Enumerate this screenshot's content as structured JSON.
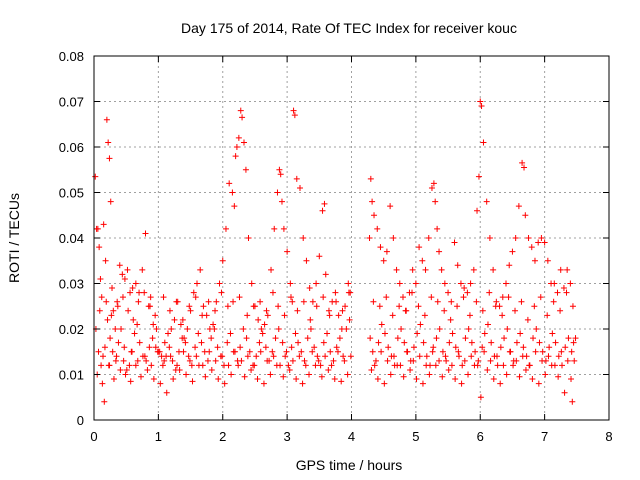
{
  "chart_data": {
    "type": "scatter",
    "title": "Day 175 of 2014, Rate Of TEC Index for receiver kouc",
    "xlabel": "GPS time / hours",
    "ylabel": "ROTI / TECUs",
    "xlim": [
      0,
      8
    ],
    "ylim": [
      0,
      0.08
    ],
    "x_ticks": [
      0,
      1,
      2,
      3,
      4,
      5,
      6,
      7,
      8
    ],
    "x_tick_labels": [
      "0",
      "1",
      "2",
      "3",
      "4",
      "5",
      "6",
      "7",
      "8"
    ],
    "y_ticks": [
      0,
      0.01,
      0.02,
      0.03,
      0.04,
      0.05,
      0.06,
      0.07,
      0.08
    ],
    "y_tick_labels": [
      "0",
      "0.01",
      "0.02",
      "0.03",
      "0.04",
      "0.05",
      "0.06",
      "0.07",
      "0.08"
    ],
    "grid": true,
    "marker": "+",
    "series": [
      {
        "name": "ROTI",
        "color": "#ff0000",
        "x": [
          0.02,
          0.04,
          0.06,
          0.08,
          0.1,
          0.12,
          0.15,
          0.18,
          0.2,
          0.22,
          0.24,
          0.26,
          0.28,
          0.3,
          0.33,
          0.36,
          0.4,
          0.44,
          0.48,
          0.52,
          0.56,
          0.6,
          0.65,
          0.7,
          0.75,
          0.8,
          0.85,
          0.88,
          0.92,
          0.96,
          1.0,
          1.05,
          1.1,
          1.15,
          1.2,
          1.25,
          1.3,
          1.35,
          1.4,
          1.45,
          1.5,
          1.55,
          1.6,
          1.65,
          1.7,
          1.75,
          1.8,
          1.85,
          1.9,
          1.95,
          2.0,
          2.05,
          2.1,
          2.15,
          2.18,
          2.2,
          2.22,
          2.25,
          2.28,
          2.3,
          2.33,
          2.36,
          2.4,
          2.45,
          2.5,
          2.55,
          2.6,
          2.65,
          2.7,
          2.75,
          2.8,
          2.85,
          2.88,
          2.9,
          2.92,
          2.95,
          3.0,
          3.05,
          3.08,
          3.1,
          3.12,
          3.15,
          3.2,
          3.25,
          3.3,
          3.35,
          3.4,
          3.45,
          3.5,
          3.55,
          3.58,
          3.6,
          3.65,
          3.7,
          3.75,
          3.8,
          3.85,
          3.9,
          3.95,
          3.98,
          4.28,
          4.3,
          4.32,
          4.35,
          4.4,
          4.45,
          4.5,
          4.55,
          4.6,
          4.65,
          4.7,
          4.75,
          4.8,
          4.85,
          4.9,
          4.95,
          5.0,
          5.05,
          5.1,
          5.15,
          5.2,
          5.25,
          5.28,
          5.3,
          5.33,
          5.36,
          5.4,
          5.45,
          5.5,
          5.55,
          5.6,
          5.65,
          5.7,
          5.75,
          5.8,
          5.85,
          5.9,
          5.95,
          5.98,
          6.0,
          6.02,
          6.05,
          6.1,
          6.15,
          6.2,
          6.25,
          6.3,
          6.35,
          6.4,
          6.45,
          6.5,
          6.55,
          6.6,
          6.65,
          6.68,
          6.7,
          6.75,
          6.8,
          6.85,
          6.9,
          6.95,
          7.0,
          7.05,
          7.1,
          7.15,
          7.2,
          7.25,
          7.3,
          7.35,
          7.4,
          7.45,
          7.48,
          0.03,
          0.07,
          0.11,
          0.14,
          0.17,
          0.21,
          0.25,
          0.29,
          0.34,
          0.38,
          0.42,
          0.47,
          0.51,
          0.55,
          0.59,
          0.63,
          0.67,
          0.71,
          0.76,
          0.81,
          0.86,
          0.91,
          0.97,
          1.02,
          1.07,
          1.12,
          1.17,
          1.22,
          1.27,
          1.32,
          1.37,
          1.42,
          1.47,
          1.52,
          1.57,
          1.62,
          1.67,
          1.72,
          1.77,
          1.82,
          1.87,
          1.92,
          1.97,
          2.02,
          2.07,
          2.12,
          2.17,
          2.23,
          2.27,
          2.32,
          2.37,
          2.42,
          2.47,
          2.52,
          2.57,
          2.62,
          2.67,
          2.72,
          2.77,
          2.82,
          2.87,
          2.93,
          2.97,
          3.02,
          3.07,
          3.13,
          3.17,
          3.22,
          3.27,
          3.32,
          3.37,
          3.42,
          3.47,
          3.52,
          3.57,
          3.62,
          3.67,
          3.72,
          3.77,
          3.82,
          3.87,
          3.92,
          3.97,
          4.29,
          4.33,
          4.38,
          4.42,
          4.47,
          4.52,
          4.57,
          4.62,
          4.67,
          4.72,
          4.77,
          4.82,
          4.87,
          4.92,
          4.97,
          5.02,
          5.07,
          5.12,
          5.17,
          5.22,
          5.27,
          5.32,
          5.37,
          5.42,
          5.47,
          5.52,
          5.57,
          5.62,
          5.67,
          5.72,
          5.77,
          5.82,
          5.87,
          5.92,
          5.97,
          6.03,
          6.07,
          6.12,
          6.17,
          6.22,
          6.27,
          6.32,
          6.37,
          6.42,
          6.47,
          6.52,
          6.57,
          6.62,
          6.67,
          6.72,
          6.77,
          6.82,
          6.87,
          6.92,
          6.97,
          7.02,
          7.07,
          7.12,
          7.17,
          7.22,
          7.27,
          7.32,
          7.37,
          7.42,
          7.46,
          0.05,
          0.13,
          0.23,
          0.31,
          0.41,
          0.49,
          0.57,
          0.65,
          0.73,
          0.83,
          0.93,
          1.03,
          1.13,
          1.23,
          1.33,
          1.43,
          1.53,
          1.63,
          1.73,
          1.83,
          1.93,
          2.03,
          2.13,
          2.24,
          2.34,
          2.44,
          2.54,
          2.64,
          2.74,
          2.84,
          2.94,
          3.04,
          3.14,
          3.24,
          3.34,
          3.44,
          3.54,
          3.64,
          3.74,
          3.84,
          3.94,
          4.31,
          4.41,
          4.51,
          4.61,
          4.71,
          4.81,
          4.91,
          5.01,
          5.11,
          5.21,
          5.31,
          5.41,
          5.51,
          5.61,
          5.71,
          5.81,
          5.91,
          6.01,
          6.11,
          6.21,
          6.31,
          6.41,
          6.51,
          6.61,
          6.71,
          6.81,
          6.91,
          7.01,
          7.11,
          7.21,
          7.31,
          7.41,
          0.09,
          0.19,
          0.27,
          0.37,
          0.45,
          0.53,
          0.61,
          0.69,
          0.78,
          0.87,
          0.95,
          1.08,
          1.18,
          1.28,
          1.38,
          1.48,
          1.58,
          1.68,
          1.78,
          1.88,
          1.98,
          2.08,
          2.16,
          2.26,
          2.38,
          2.48,
          2.58,
          2.68,
          2.78,
          2.86,
          2.96,
          3.06,
          3.16,
          3.26,
          3.36,
          3.46,
          3.56,
          3.66,
          3.76,
          3.86,
          3.96,
          4.34,
          4.44,
          4.54,
          4.64,
          4.74,
          4.84,
          4.94,
          5.04,
          5.14,
          5.24,
          5.34,
          5.44,
          5.54,
          5.64,
          5.74,
          5.84,
          5.94,
          6.04,
          6.14,
          6.24,
          6.34,
          6.44,
          6.54,
          6.64,
          6.74,
          6.84,
          6.94,
          7.04,
          7.14,
          7.24,
          7.34,
          7.44,
          0.16,
          0.24,
          0.35,
          0.46,
          0.58,
          0.68,
          0.79,
          0.89,
          0.99,
          1.09,
          1.19,
          1.29,
          1.39,
          1.49,
          1.59,
          1.69,
          1.79,
          1.89,
          1.99,
          2.09,
          2.19,
          2.29,
          2.39,
          2.49,
          2.59,
          2.69,
          2.79,
          2.89,
          2.99,
          3.09,
          3.19,
          3.29,
          3.39,
          3.49,
          3.59,
          3.69,
          3.79,
          3.89,
          3.99,
          4.36,
          4.46,
          4.56,
          4.66,
          4.76,
          4.86,
          4.96,
          5.06,
          5.16,
          5.26,
          5.36,
          5.46,
          5.56,
          5.66,
          5.76,
          5.86,
          5.96,
          6.06,
          6.16,
          6.26,
          6.36,
          6.46,
          6.56,
          6.66,
          6.76,
          6.86,
          6.96,
          7.06,
          7.16,
          7.26,
          7.36,
          7.43
        ],
        "y": [
          0.0535,
          0.042,
          0.042,
          0.038,
          0.031,
          0.027,
          0.043,
          0.035,
          0.066,
          0.061,
          0.0575,
          0.048,
          0.029,
          0.024,
          0.02,
          0.026,
          0.034,
          0.032,
          0.031,
          0.033,
          0.028,
          0.029,
          0.03,
          0.028,
          0.033,
          0.041,
          0.025,
          0.027,
          0.021,
          0.016,
          0.015,
          0.014,
          0.017,
          0.019,
          0.02,
          0.022,
          0.026,
          0.021,
          0.018,
          0.02,
          0.024,
          0.028,
          0.03,
          0.033,
          0.025,
          0.023,
          0.02,
          0.021,
          0.026,
          0.03,
          0.035,
          0.042,
          0.052,
          0.05,
          0.047,
          0.058,
          0.06,
          0.062,
          0.068,
          0.0665,
          0.061,
          0.055,
          0.04,
          0.03,
          0.025,
          0.022,
          0.02,
          0.021,
          0.023,
          0.033,
          0.042,
          0.05,
          0.055,
          0.054,
          0.048,
          0.042,
          0.037,
          0.03,
          0.026,
          0.068,
          0.067,
          0.053,
          0.051,
          0.04,
          0.035,
          0.029,
          0.026,
          0.03,
          0.036,
          0.046,
          0.0475,
          0.032,
          0.024,
          0.026,
          0.028,
          0.023,
          0.02,
          0.025,
          0.03,
          0.028,
          0.04,
          0.053,
          0.048,
          0.045,
          0.042,
          0.038,
          0.035,
          0.037,
          0.047,
          0.04,
          0.033,
          0.03,
          0.027,
          0.024,
          0.028,
          0.033,
          0.03,
          0.038,
          0.035,
          0.033,
          0.04,
          0.051,
          0.052,
          0.048,
          0.042,
          0.037,
          0.033,
          0.03,
          0.028,
          0.026,
          0.039,
          0.034,
          0.03,
          0.029,
          0.028,
          0.03,
          0.033,
          0.046,
          0.0535,
          0.07,
          0.069,
          0.061,
          0.048,
          0.04,
          0.033,
          0.026,
          0.025,
          0.027,
          0.03,
          0.034,
          0.037,
          0.04,
          0.047,
          0.0565,
          0.0555,
          0.045,
          0.04,
          0.038,
          0.035,
          0.039,
          0.04,
          0.039,
          0.035,
          0.03,
          0.03,
          0.028,
          0.033,
          0.029,
          0.033,
          0.03,
          0.017,
          0.018,
          0.02,
          0.015,
          0.012,
          0.014,
          0.016,
          0.022,
          0.018,
          0.015,
          0.013,
          0.017,
          0.02,
          0.016,
          0.011,
          0.012,
          0.015,
          0.019,
          0.021,
          0.017,
          0.014,
          0.013,
          0.016,
          0.018,
          0.02,
          0.015,
          0.012,
          0.014,
          0.016,
          0.013,
          0.011,
          0.015,
          0.018,
          0.017,
          0.014,
          0.012,
          0.016,
          0.019,
          0.017,
          0.015,
          0.013,
          0.018,
          0.02,
          0.016,
          0.014,
          0.012,
          0.017,
          0.019,
          0.015,
          0.013,
          0.016,
          0.02,
          0.018,
          0.015,
          0.012,
          0.014,
          0.017,
          0.019,
          0.016,
          0.013,
          0.015,
          0.018,
          0.02,
          0.017,
          0.014,
          0.012,
          0.016,
          0.019,
          0.017,
          0.015,
          0.013,
          0.018,
          0.02,
          0.016,
          0.014,
          0.012,
          0.017,
          0.019,
          0.015,
          0.013,
          0.016,
          0.018,
          0.014,
          0.02,
          0.022,
          0.018,
          0.015,
          0.013,
          0.017,
          0.021,
          0.019,
          0.016,
          0.014,
          0.012,
          0.018,
          0.02,
          0.017,
          0.015,
          0.013,
          0.016,
          0.019,
          0.021,
          0.017,
          0.014,
          0.012,
          0.016,
          0.018,
          0.02,
          0.015,
          0.013,
          0.017,
          0.019,
          0.016,
          0.014,
          0.012,
          0.018,
          0.02,
          0.017,
          0.015,
          0.013,
          0.016,
          0.019,
          0.021,
          0.017,
          0.014,
          0.012,
          0.016,
          0.018,
          0.02,
          0.015,
          0.013,
          0.017,
          0.019,
          0.016,
          0.014,
          0.012,
          0.018,
          0.02,
          0.017,
          0.015,
          0.013,
          0.016,
          0.019,
          0.017,
          0.014,
          0.012,
          0.016,
          0.018,
          0.015,
          0.013,
          0.01,
          0.008,
          0.012,
          0.009,
          0.011,
          0.01,
          0.0085,
          0.012,
          0.0095,
          0.011,
          0.009,
          0.008,
          0.006,
          0.009,
          0.011,
          0.01,
          0.0085,
          0.012,
          0.0095,
          0.011,
          0.009,
          0.008,
          0.01,
          0.012,
          0.0095,
          0.011,
          0.009,
          0.008,
          0.01,
          0.012,
          0.0095,
          0.011,
          0.009,
          0.008,
          0.01,
          0.012,
          0.0095,
          0.011,
          0.009,
          0.0085,
          0.01,
          0.011,
          0.009,
          0.008,
          0.01,
          0.012,
          0.0095,
          0.011,
          0.009,
          0.008,
          0.01,
          0.012,
          0.0095,
          0.011,
          0.009,
          0.008,
          0.01,
          0.012,
          0.005,
          0.011,
          0.009,
          0.008,
          0.01,
          0.012,
          0.0095,
          0.011,
          0.009,
          0.008,
          0.01,
          0.012,
          0.0095,
          0.006,
          0.009,
          0.024,
          0.026,
          0.023,
          0.025,
          0.027,
          0.024,
          0.022,
          0.026,
          0.028,
          0.025,
          0.023,
          0.027,
          0.024,
          0.026,
          0.022,
          0.025,
          0.027,
          0.023,
          0.026,
          0.024,
          0.028,
          0.025,
          0.026,
          0.027,
          0.023,
          0.025,
          0.026,
          0.024,
          0.028,
          0.025,
          0.023,
          0.027,
          0.024,
          0.026,
          0.022,
          0.025,
          0.027,
          0.023,
          0.026,
          0.024,
          0.028,
          0.026,
          0.025,
          0.027,
          0.023,
          0.025,
          0.024,
          0.028,
          0.025,
          0.023,
          0.027,
          0.026,
          0.024,
          0.022,
          0.025,
          0.027,
          0.023,
          0.026,
          0.024,
          0.028,
          0.025,
          0.023,
          0.027,
          0.024,
          0.026,
          0.022,
          0.025,
          0.027,
          0.023,
          0.026,
          0.024,
          0.028,
          0.025,
          0.004,
          0.012,
          0.014,
          0.013,
          0.015,
          0.013,
          0.014,
          0.012,
          0.015,
          0.013,
          0.014,
          0.012,
          0.015,
          0.013,
          0.014,
          0.012,
          0.015,
          0.013,
          0.014,
          0.012,
          0.015,
          0.013,
          0.014,
          0.012,
          0.015,
          0.013,
          0.014,
          0.012,
          0.015,
          0.013,
          0.014,
          0.012,
          0.015,
          0.013,
          0.014,
          0.012,
          0.015,
          0.013,
          0.014,
          0.012,
          0.015,
          0.013,
          0.014,
          0.012,
          0.015,
          0.013,
          0.014,
          0.012,
          0.015,
          0.013,
          0.014,
          0.012,
          0.015,
          0.013,
          0.014,
          0.012,
          0.015,
          0.013,
          0.014,
          0.012,
          0.015,
          0.013,
          0.014,
          0.012,
          0.015,
          0.013,
          0.014,
          0.012,
          0.015,
          0.013,
          0.004
        ]
      }
    ]
  }
}
